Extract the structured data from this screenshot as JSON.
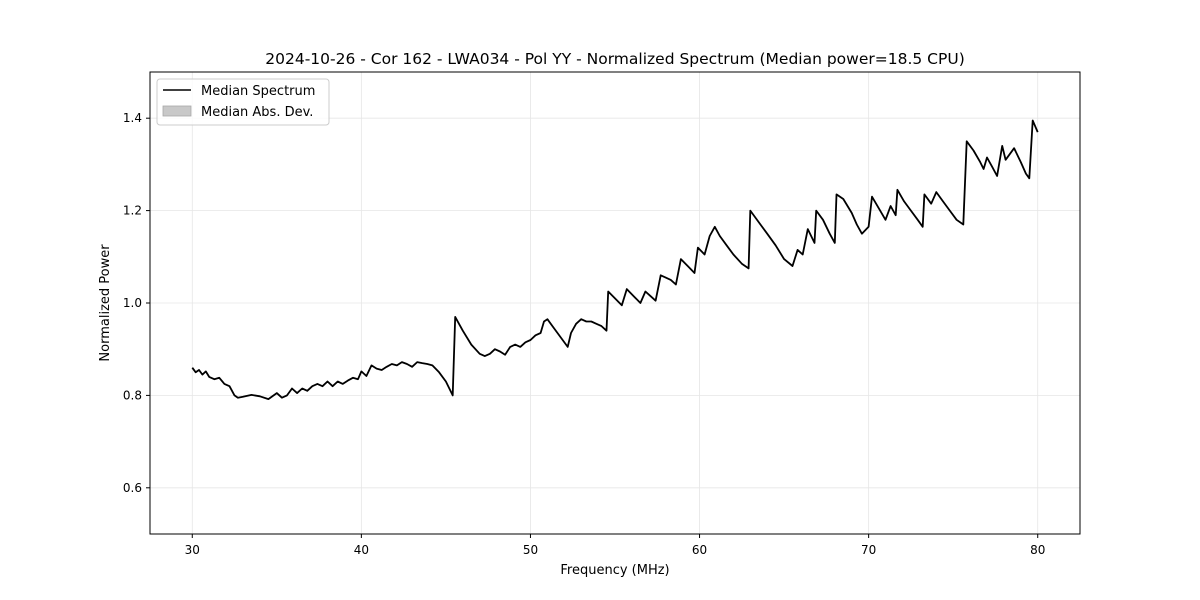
{
  "chart_data": {
    "type": "line",
    "title": "2024-10-26 - Cor 162 - LWA034 - Pol YY - Normalized Spectrum (Median power=18.5 CPU)",
    "xlabel": "Frequency (MHz)",
    "ylabel": "Normalized Power",
    "xlim": [
      27.5,
      82.5
    ],
    "ylim": [
      0.5,
      1.5
    ],
    "xticks": [
      30,
      40,
      50,
      60,
      70,
      80
    ],
    "yticks": [
      0.6,
      0.8,
      1.0,
      1.2,
      1.4
    ],
    "xtick_labels": [
      "30",
      "40",
      "50",
      "60",
      "70",
      "80"
    ],
    "ytick_labels": [
      "0.6",
      "0.8",
      "1.0",
      "1.2",
      "1.4"
    ],
    "grid": true,
    "legend_position": "top-left",
    "legend": [
      {
        "label": "Median Spectrum",
        "kind": "line",
        "color": "#000000"
      },
      {
        "label": "Median Abs. Dev.",
        "kind": "patch",
        "color": "#c8c8c8"
      }
    ],
    "series": [
      {
        "name": "Median Spectrum",
        "color": "#000000",
        "x": [
          30.0,
          30.2,
          30.4,
          30.6,
          30.8,
          31.0,
          31.3,
          31.6,
          31.9,
          32.2,
          32.5,
          32.7,
          33.0,
          33.5,
          34.0,
          34.5,
          35.0,
          35.3,
          35.6,
          35.9,
          36.2,
          36.5,
          36.8,
          37.1,
          37.4,
          37.7,
          38.0,
          38.3,
          38.6,
          38.9,
          39.2,
          39.5,
          39.8,
          40.0,
          40.3,
          40.6,
          40.9,
          41.2,
          41.5,
          41.8,
          42.1,
          42.4,
          42.7,
          43.0,
          43.3,
          43.6,
          43.9,
          44.2,
          44.6,
          45.0,
          45.4,
          45.55,
          46.0,
          46.5,
          47.0,
          47.3,
          47.6,
          47.9,
          48.2,
          48.5,
          48.8,
          49.1,
          49.4,
          49.7,
          50.0,
          50.3,
          50.6,
          50.8,
          51.0,
          51.4,
          51.8,
          52.2,
          52.4,
          52.7,
          53.0,
          53.3,
          53.6,
          53.9,
          54.2,
          54.5,
          54.6,
          55.0,
          55.4,
          55.7,
          56.1,
          56.5,
          56.8,
          57.1,
          57.4,
          57.7,
          58.0,
          58.3,
          58.6,
          58.9,
          59.3,
          59.7,
          59.9,
          60.3,
          60.6,
          60.9,
          61.2,
          61.6,
          62.0,
          62.5,
          62.9,
          63.0,
          63.5,
          64.0,
          64.5,
          65.0,
          65.5,
          65.8,
          66.1,
          66.4,
          66.8,
          66.9,
          67.3,
          67.7,
          68.0,
          68.1,
          68.5,
          69.0,
          69.3,
          69.6,
          70.0,
          70.2,
          70.6,
          71.0,
          71.3,
          71.6,
          71.7,
          72.1,
          72.5,
          72.9,
          73.2,
          73.3,
          73.7,
          74.0,
          74.4,
          74.8,
          75.2,
          75.6,
          75.8,
          76.2,
          76.6,
          76.8,
          77.0,
          77.3,
          77.6,
          77.9,
          78.1,
          78.6,
          79.0,
          79.3,
          79.5,
          79.7,
          80.0
        ],
        "values": [
          0.86,
          0.85,
          0.855,
          0.845,
          0.852,
          0.84,
          0.835,
          0.838,
          0.825,
          0.82,
          0.8,
          0.795,
          0.797,
          0.801,
          0.798,
          0.792,
          0.805,
          0.795,
          0.8,
          0.815,
          0.805,
          0.815,
          0.81,
          0.82,
          0.825,
          0.82,
          0.83,
          0.82,
          0.83,
          0.825,
          0.832,
          0.838,
          0.835,
          0.852,
          0.842,
          0.865,
          0.858,
          0.855,
          0.862,
          0.868,
          0.865,
          0.872,
          0.868,
          0.862,
          0.872,
          0.87,
          0.868,
          0.865,
          0.85,
          0.83,
          0.8,
          0.97,
          0.94,
          0.91,
          0.89,
          0.885,
          0.89,
          0.9,
          0.895,
          0.888,
          0.905,
          0.91,
          0.905,
          0.915,
          0.92,
          0.93,
          0.935,
          0.96,
          0.965,
          0.945,
          0.925,
          0.905,
          0.935,
          0.955,
          0.965,
          0.96,
          0.96,
          0.955,
          0.95,
          0.94,
          1.025,
          1.01,
          0.995,
          1.03,
          1.015,
          1.0,
          1.025,
          1.015,
          1.005,
          1.06,
          1.055,
          1.05,
          1.04,
          1.095,
          1.08,
          1.065,
          1.12,
          1.105,
          1.145,
          1.165,
          1.145,
          1.125,
          1.105,
          1.085,
          1.075,
          1.2,
          1.175,
          1.15,
          1.125,
          1.095,
          1.08,
          1.115,
          1.105,
          1.16,
          1.13,
          1.2,
          1.18,
          1.15,
          1.13,
          1.235,
          1.225,
          1.195,
          1.17,
          1.15,
          1.165,
          1.23,
          1.205,
          1.18,
          1.21,
          1.19,
          1.245,
          1.22,
          1.2,
          1.18,
          1.165,
          1.235,
          1.215,
          1.24,
          1.22,
          1.2,
          1.18,
          1.17,
          1.35,
          1.33,
          1.305,
          1.29,
          1.315,
          1.295,
          1.275,
          1.34,
          1.31,
          1.335,
          1.305,
          1.28,
          1.27,
          1.395,
          1.37
        ]
      }
    ]
  }
}
